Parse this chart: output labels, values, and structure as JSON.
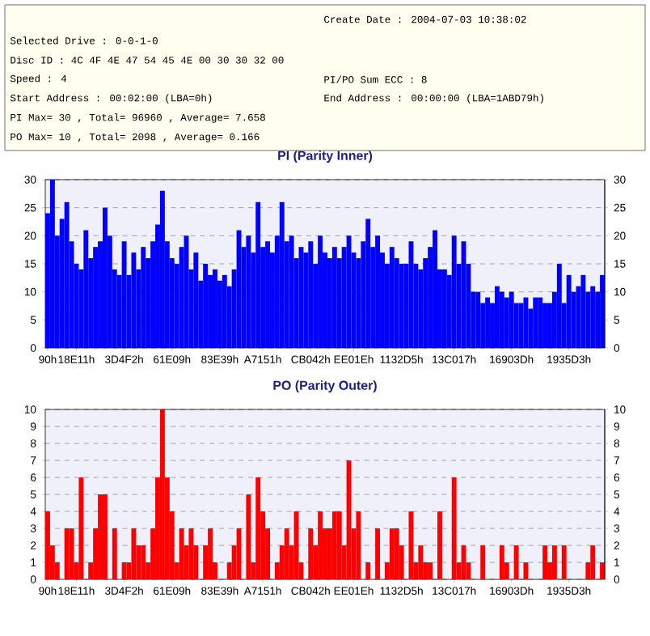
{
  "chart_data": [
    {
      "type": "other",
      "annotations": [
        "Create Date    : 2004-07-03 10:38:02",
        "Selected Drive : 0-0-1-0",
        "Disc ID : 4C 4F 4E 47 54 45 4E 00 30 30 32 00",
        "Speed          : 4",
        "PI/PO Sum ECC : 8",
        "Start Address  : 00:02:00 (LBA=0h)",
        "End Address    : 00:00:00 (LBA=1ABD79h)",
        "PI Max= 30 , Total= 96960 , Average= 7.658",
        "PO Max= 10 , Total= 2098 , Average= 0.166"
      ]
    },
    {
      "type": "bar",
      "title": "PI (Parity Inner)",
      "color": "#0000ff",
      "grid": "y",
      "categories": [
        "90h",
        null,
        null,
        null,
        null,
        null,
        "18E11h",
        null,
        null,
        null,
        null,
        null,
        null,
        null,
        null,
        null,
        "3D4F2h",
        null,
        null,
        null,
        null,
        null,
        null,
        null,
        null,
        null,
        "61E09h",
        null,
        null,
        null,
        null,
        null,
        null,
        null,
        null,
        null,
        "83E39h",
        null,
        null,
        null,
        null,
        null,
        null,
        null,
        null,
        "A7151h",
        null,
        null,
        null,
        null,
        null,
        null,
        null,
        null,
        null,
        "CB042h",
        null,
        null,
        null,
        null,
        null,
        null,
        null,
        null,
        "EE01Eh",
        null,
        null,
        null,
        null,
        null,
        null,
        null,
        null,
        null,
        "1132D5h",
        null,
        null,
        null,
        null,
        null,
        null,
        null,
        null,
        null,
        null,
        "13C017h",
        null,
        null,
        null,
        null,
        null,
        null,
        null,
        null,
        null,
        null,
        null,
        "16903Dh",
        null,
        null,
        null,
        null,
        null,
        null,
        null,
        null,
        null,
        null,
        null,
        "1935D3h",
        null,
        null,
        null,
        null,
        null,
        null,
        null
      ],
      "values": [
        24,
        30,
        20,
        23,
        26,
        19,
        15,
        14,
        21,
        16,
        18,
        19,
        25,
        20,
        14,
        13,
        19,
        13,
        17,
        14,
        18,
        16,
        19,
        22,
        28,
        19,
        16,
        15,
        18,
        20,
        14,
        17,
        12,
        15,
        13,
        14,
        12,
        13,
        11,
        14,
        21,
        18,
        20,
        17,
        26,
        18,
        19,
        17,
        20,
        26,
        19,
        20,
        16,
        18,
        17,
        19,
        15,
        20,
        17,
        16,
        18,
        16,
        18,
        20,
        17,
        16,
        19,
        23,
        18,
        20,
        17,
        15,
        18,
        16,
        15,
        15,
        19,
        15,
        14,
        16,
        18,
        21,
        14,
        14,
        13,
        20,
        15,
        19,
        15,
        10,
        10,
        8,
        9,
        8,
        11,
        10,
        9,
        10,
        8,
        8,
        9,
        7,
        9,
        9,
        8,
        8,
        10,
        15,
        8,
        13,
        10,
        11,
        13,
        10,
        11,
        10,
        13
      ],
      "ylim": [
        0,
        30
      ],
      "yticks": [
        0,
        5,
        10,
        15,
        20,
        25,
        30
      ],
      "y2lim": [
        0,
        30
      ],
      "y2ticks": [
        0,
        5,
        10,
        15,
        20,
        25,
        30
      ]
    },
    {
      "type": "bar",
      "title": "PO (Parity Outer)",
      "color": "#ff0000",
      "grid": "y",
      "categories": [
        "90h",
        null,
        null,
        null,
        null,
        null,
        "18E11h",
        null,
        null,
        null,
        null,
        null,
        null,
        null,
        null,
        null,
        "3D4F2h",
        null,
        null,
        null,
        null,
        null,
        null,
        null,
        null,
        null,
        "61E09h",
        null,
        null,
        null,
        null,
        null,
        null,
        null,
        null,
        null,
        "83E39h",
        null,
        null,
        null,
        null,
        null,
        null,
        null,
        null,
        "A7151h",
        null,
        null,
        null,
        null,
        null,
        null,
        null,
        null,
        null,
        "CB042h",
        null,
        null,
        null,
        null,
        null,
        null,
        null,
        null,
        "EE01Eh",
        null,
        null,
        null,
        null,
        null,
        null,
        null,
        null,
        null,
        "1132D5h",
        null,
        null,
        null,
        null,
        null,
        null,
        null,
        null,
        null,
        null,
        "13C017h",
        null,
        null,
        null,
        null,
        null,
        null,
        null,
        null,
        null,
        null,
        null,
        "16903Dh",
        null,
        null,
        null,
        null,
        null,
        null,
        null,
        null,
        null,
        null,
        null,
        "1935D3h",
        null,
        null,
        null,
        null,
        null,
        null,
        null
      ],
      "values": [
        4,
        2,
        1,
        0,
        3,
        3,
        1,
        6,
        0,
        1,
        3,
        5,
        5,
        0,
        3,
        0,
        1,
        1,
        3,
        2,
        2,
        1,
        3,
        6,
        10,
        6,
        4,
        1,
        3,
        2,
        3,
        2,
        0,
        2,
        3,
        1,
        0,
        0,
        1,
        2,
        3,
        0,
        5,
        1,
        6,
        4,
        3,
        0,
        1,
        2,
        3,
        2,
        4,
        1,
        0,
        3,
        2,
        4,
        3,
        3,
        4,
        4,
        2,
        7,
        3,
        4,
        0,
        1,
        0,
        3,
        0,
        1,
        3,
        3,
        2,
        0,
        4,
        1,
        2,
        1,
        1,
        0,
        4,
        0,
        0,
        6,
        1,
        2,
        1,
        0,
        0,
        2,
        0,
        0,
        0,
        2,
        1,
        0,
        2,
        0,
        1,
        0,
        0,
        0,
        2,
        1,
        2,
        0,
        2,
        0,
        0,
        0,
        0,
        1,
        2,
        0,
        1
      ],
      "ylim": [
        0,
        10
      ],
      "yticks": [
        0,
        1,
        2,
        3,
        4,
        5,
        6,
        7,
        8,
        9,
        10
      ],
      "y2lim": [
        0,
        10
      ],
      "y2ticks": [
        0,
        1,
        2,
        3,
        4,
        5,
        6,
        7,
        8,
        9,
        10
      ]
    }
  ]
}
